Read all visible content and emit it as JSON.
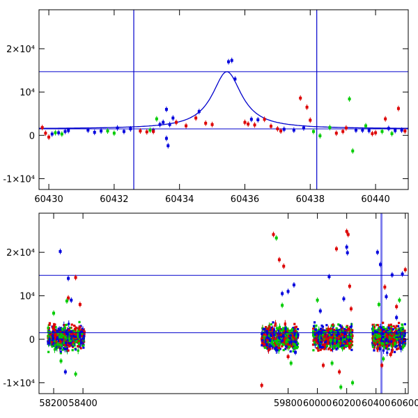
{
  "chart_data": [
    {
      "type": "scatter",
      "xlim": [
        60429.7,
        60441.0
      ],
      "ylim": [
        -12500,
        29000
      ],
      "x_ticks": [
        60430,
        60432,
        60434,
        60436,
        60438,
        60440
      ],
      "x_tick_labels": [
        "60430",
        "60432",
        "60434",
        "60436",
        "60438",
        "60440"
      ],
      "y_ticks": [
        -10000,
        0,
        10000,
        20000
      ],
      "y_tick_labels": [
        "-1×10⁴",
        "0",
        "10⁴",
        "2×10⁴"
      ],
      "hlines": [
        1500,
        14700
      ],
      "vlines": [
        60432.6,
        60438.2
      ],
      "model_curve": {
        "color": "#0000cc",
        "t0": 60435.45,
        "baseline": 1500,
        "peak": 14700,
        "tE": 0.55
      },
      "series": [
        {
          "color": "#0000dd",
          "points": [
            [
              60430.1,
              300
            ],
            [
              60430.3,
              600
            ],
            [
              60430.5,
              900
            ],
            [
              60430.6,
              1100
            ],
            [
              60431.2,
              1200
            ],
            [
              60431.4,
              700
            ],
            [
              60431.6,
              1000
            ],
            [
              60432.1,
              1700
            ],
            [
              60432.3,
              900
            ],
            [
              60432.5,
              1500
            ],
            [
              60433.2,
              1100
            ],
            [
              60433.4,
              2500
            ],
            [
              60433.5,
              3000
            ],
            [
              60433.6,
              6000
            ],
            [
              60433.7,
              2500
            ],
            [
              60433.8,
              4000
            ],
            [
              60433.6,
              -700
            ],
            [
              60433.65,
              -2400
            ],
            [
              60434.6,
              5500
            ],
            [
              60435.5,
              17000
            ],
            [
              60435.6,
              17300
            ],
            [
              60435.7,
              13000
            ],
            [
              60436.2,
              3700
            ],
            [
              60436.4,
              3600
            ],
            [
              60437.2,
              1400
            ],
            [
              60437.5,
              1200
            ],
            [
              60437.8,
              1700
            ],
            [
              60439.4,
              1200
            ],
            [
              60439.6,
              1200
            ],
            [
              60439.8,
              1100
            ],
            [
              60440.4,
              1600
            ],
            [
              60440.6,
              1100
            ],
            [
              60440.8,
              1200
            ]
          ]
        },
        {
          "color": "#dd0000",
          "points": [
            [
              60429.8,
              1800
            ],
            [
              60429.9,
              500
            ],
            [
              60430.0,
              -400
            ],
            [
              60432.8,
              1000
            ],
            [
              60433.0,
              800
            ],
            [
              60433.2,
              900
            ],
            [
              60433.9,
              3000
            ],
            [
              60434.2,
              2200
            ],
            [
              60434.5,
              4000
            ],
            [
              60434.8,
              2800
            ],
            [
              60435.0,
              2500
            ],
            [
              60436.0,
              3000
            ],
            [
              60436.1,
              2600
            ],
            [
              60436.3,
              2400
            ],
            [
              60436.6,
              3700
            ],
            [
              60436.8,
              2100
            ],
            [
              60437.0,
              1500
            ],
            [
              60437.1,
              1000
            ],
            [
              60437.7,
              8600
            ],
            [
              60437.9,
              6500
            ],
            [
              60438.0,
              3500
            ],
            [
              60438.8,
              500
            ],
            [
              60439.0,
              900
            ],
            [
              60439.1,
              1700
            ],
            [
              60439.9,
              400
            ],
            [
              60440.0,
              600
            ],
            [
              60440.3,
              3800
            ],
            [
              60440.7,
              6200
            ],
            [
              60440.9,
              1000
            ]
          ]
        },
        {
          "color": "#00cc00",
          "points": [
            [
              60430.2,
              600
            ],
            [
              60430.4,
              300
            ],
            [
              60431.8,
              1000
            ],
            [
              60432.0,
              500
            ],
            [
              60433.1,
              1200
            ],
            [
              60433.3,
              3800
            ],
            [
              60438.1,
              900
            ],
            [
              60438.3,
              -100
            ],
            [
              60438.6,
              1800
            ],
            [
              60439.2,
              8400
            ],
            [
              60439.3,
              -3600
            ],
            [
              60439.7,
              2200
            ],
            [
              60440.2,
              900
            ],
            [
              60440.5,
              400
            ]
          ]
        }
      ]
    },
    {
      "type": "scatter",
      "xlim": [
        58100,
        60620
      ],
      "ylim": [
        -12500,
        29000
      ],
      "x_ticks": [
        58200,
        58400,
        59800,
        60000,
        60200,
        60400,
        60600
      ],
      "x_tick_labels": [
        "58200",
        "58400",
        "59800",
        "60000",
        "60200",
        "60400",
        "60600"
      ],
      "y_ticks": [
        -10000,
        0,
        10000,
        20000
      ],
      "y_tick_labels": [
        "-1×10⁴",
        "0",
        "10⁴",
        "2×10⁴"
      ],
      "hlines": [
        1500,
        14700
      ],
      "highlight_band": [
        60430,
        60441
      ],
      "season_ranges": [
        [
          58160,
          58410
        ],
        [
          59620,
          59870
        ],
        [
          59970,
          60240
        ],
        [
          60375,
          60600
        ]
      ],
      "series": [
        {
          "color": "#0000dd",
          "points": [
            [
              58245,
              20200
            ],
            [
              58280,
              -7500
            ],
            [
              58300,
              14000
            ],
            [
              58320,
              9000
            ],
            [
              59760,
              10500
            ],
            [
              59800,
              11000
            ],
            [
              59840,
              12500
            ],
            [
              59850,
              -3000
            ],
            [
              60020,
              6500
            ],
            [
              60080,
              14400
            ],
            [
              60180,
              9300
            ],
            [
              60200,
              21200
            ],
            [
              60205,
              19900
            ],
            [
              60410,
              20000
            ],
            [
              60430,
              17200
            ],
            [
              60470,
              9800
            ],
            [
              60510,
              14800
            ],
            [
              60540,
              5000
            ],
            [
              60580,
              15000
            ]
          ]
        },
        {
          "color": "#dd0000",
          "points": [
            [
              58300,
              9500
            ],
            [
              58350,
              14200
            ],
            [
              58380,
              8000
            ],
            [
              59620,
              -10600
            ],
            [
              59700,
              24100
            ],
            [
              59740,
              18300
            ],
            [
              59770,
              16800
            ],
            [
              59800,
              -4000
            ],
            [
              60040,
              -6000
            ],
            [
              60130,
              20800
            ],
            [
              60150,
              -7500
            ],
            [
              60200,
              24800
            ],
            [
              60210,
              24100
            ],
            [
              60220,
              12200
            ],
            [
              60230,
              7000
            ],
            [
              60440,
              -6000
            ],
            [
              60460,
              12000
            ],
            [
              60500,
              -3500
            ],
            [
              60540,
              7500
            ],
            [
              60600,
              16000
            ]
          ]
        },
        {
          "color": "#00cc00",
          "points": [
            [
              58200,
              6000
            ],
            [
              58250,
              -5000
            ],
            [
              58290,
              8800
            ],
            [
              58350,
              -8000
            ],
            [
              59720,
              23300
            ],
            [
              59760,
              7800
            ],
            [
              59820,
              -5500
            ],
            [
              60000,
              9000
            ],
            [
              60100,
              -5500
            ],
            [
              60160,
              -11000
            ],
            [
              60240,
              -10000
            ],
            [
              60420,
              8000
            ],
            [
              60450,
              -4500
            ],
            [
              60530,
              -1000
            ],
            [
              60560,
              9000
            ],
            [
              60590,
              -1500
            ]
          ]
        }
      ]
    }
  ]
}
